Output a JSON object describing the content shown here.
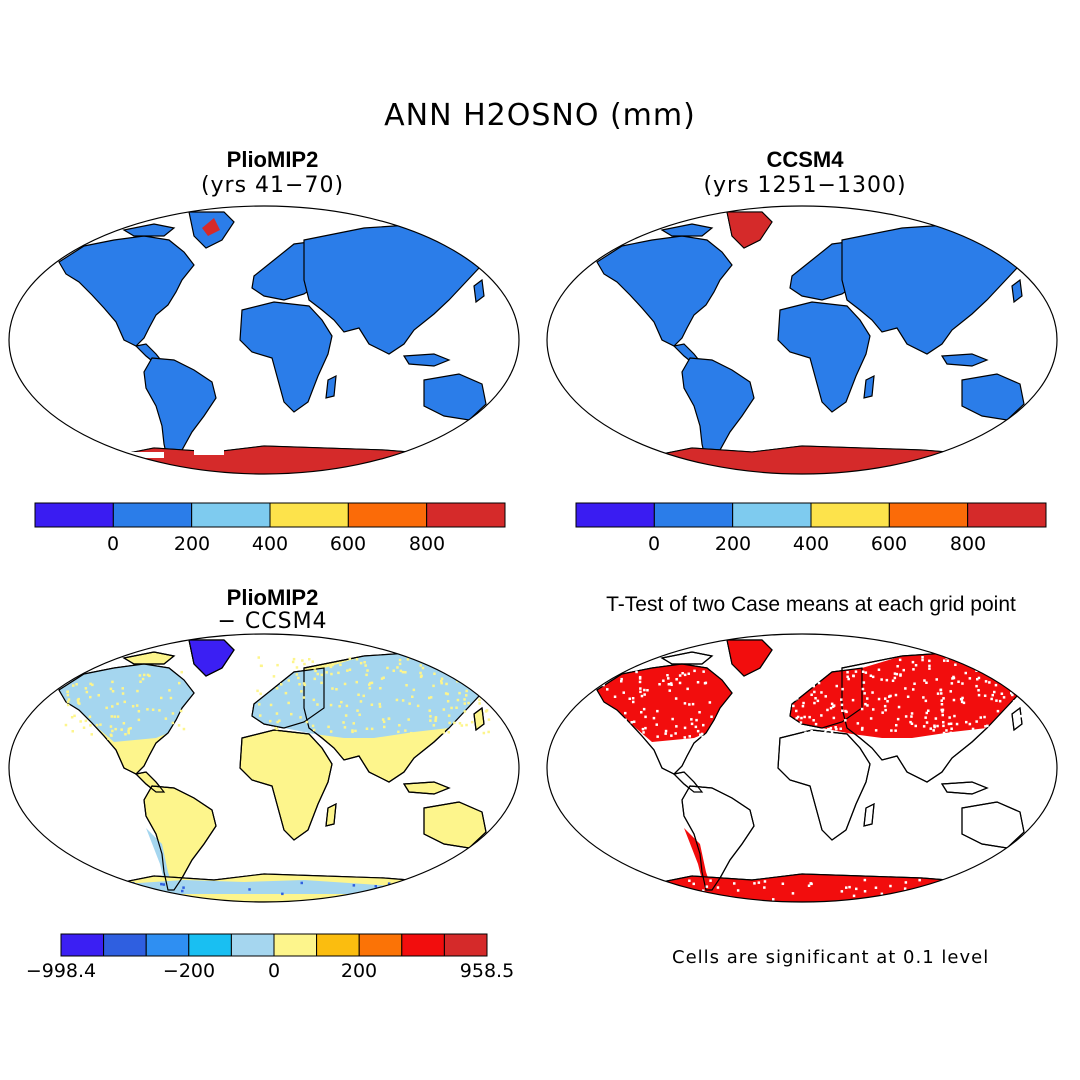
{
  "main_title": "ANN H2OSNO (mm)",
  "panels": {
    "p1": {
      "title": "PlioMIP2",
      "subtitle": "(yrs 41−70)"
    },
    "p2": {
      "title": "CCSM4",
      "subtitle": "(yrs 1251−1300)"
    },
    "p3": {
      "title": "PlioMIP2",
      "subtitle": "− CCSM4"
    },
    "p4": {
      "title": "T-Test of two Case means at each grid point",
      "note": "Cells are significant at 0.1 level"
    }
  },
  "colorbar_top": {
    "colors": [
      "#3a1cf2",
      "#2b7de9",
      "#7ecbef",
      "#fde34b",
      "#fb6b08",
      "#d52a2a"
    ],
    "ticks": [
      "0",
      "200",
      "400",
      "600",
      "800"
    ]
  },
  "colorbar_diff": {
    "colors": [
      "#3b1ff3",
      "#2f5fe0",
      "#2f8ff2",
      "#19bff2",
      "#a5d6ef",
      "#fdf58c",
      "#fbbd0f",
      "#fb7306",
      "#f20d0d",
      "#d52a2a"
    ],
    "ticks": [
      "−998.4",
      "−200",
      "0",
      "200",
      "958.5"
    ]
  },
  "colors": {
    "land_snow_low": "#2b7de9",
    "high_snow": "#d52a2a",
    "diff_small_neg": "#a5d6ef",
    "diff_small_pos": "#fdf58c",
    "diff_large_neg": "#3b1ff3",
    "significant": "#f20d0d"
  }
}
